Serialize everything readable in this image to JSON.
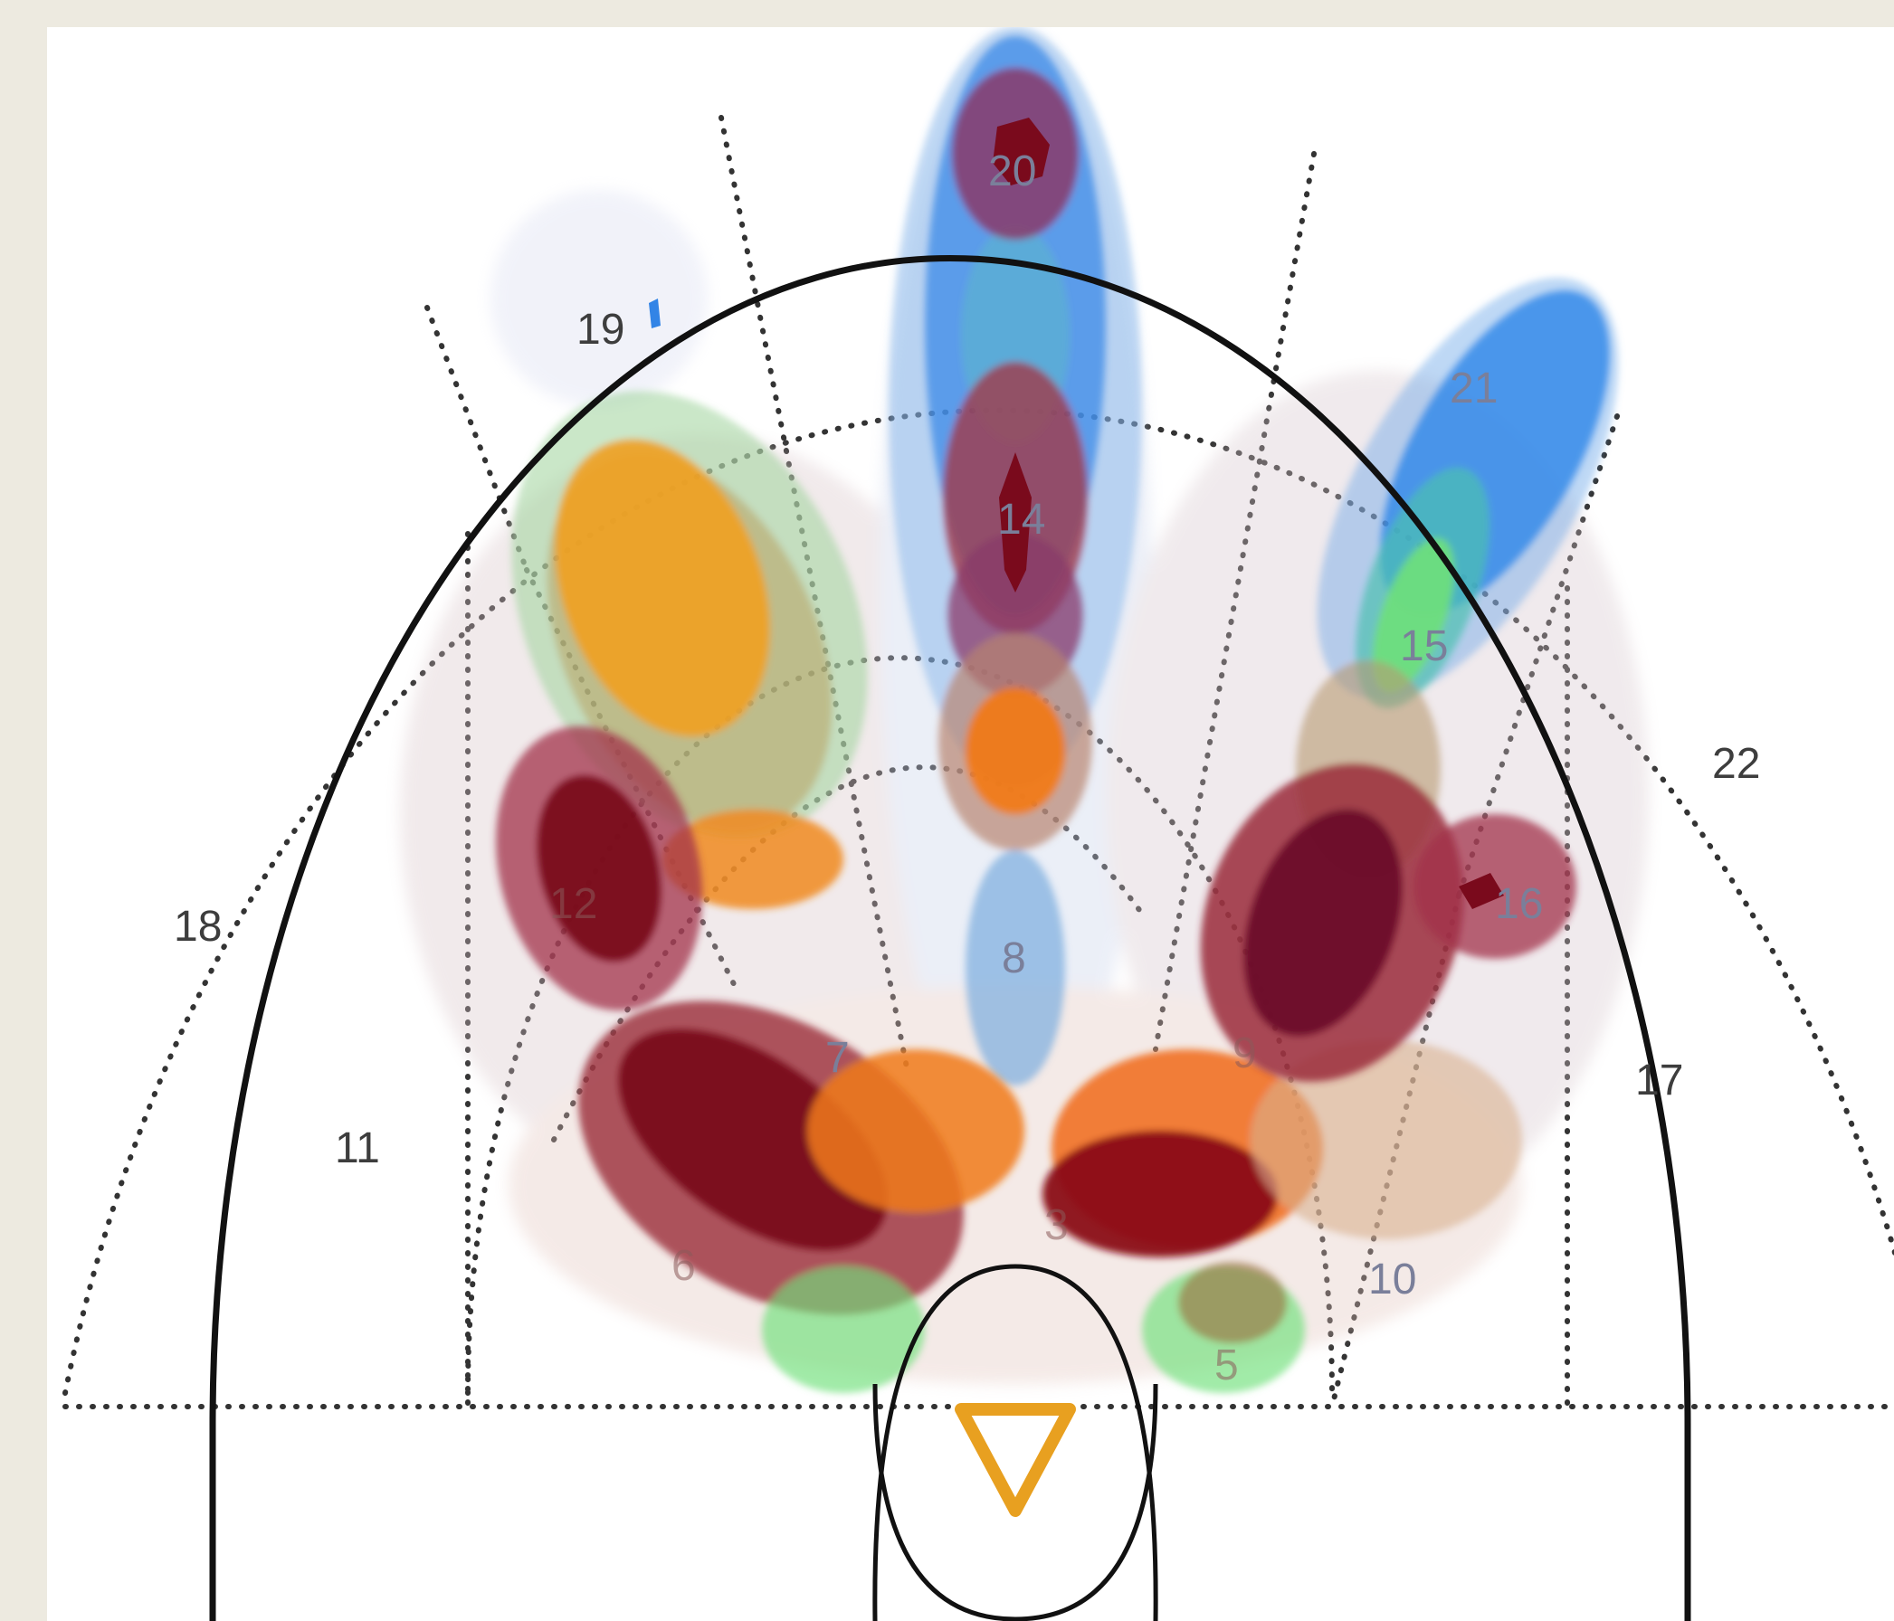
{
  "court": {
    "zones": [
      {
        "id": "3",
        "label": "3"
      },
      {
        "id": "5",
        "label": "5"
      },
      {
        "id": "6",
        "label": "6"
      },
      {
        "id": "7",
        "label": "7"
      },
      {
        "id": "8",
        "label": "8"
      },
      {
        "id": "9",
        "label": "9"
      },
      {
        "id": "10",
        "label": "10"
      },
      {
        "id": "11",
        "label": "11"
      },
      {
        "id": "12",
        "label": "12"
      },
      {
        "id": "14",
        "label": "14"
      },
      {
        "id": "15",
        "label": "15"
      },
      {
        "id": "16",
        "label": "16"
      },
      {
        "id": "17",
        "label": "17"
      },
      {
        "id": "18",
        "label": "18"
      },
      {
        "id": "19",
        "label": "19"
      },
      {
        "id": "20",
        "label": "20"
      },
      {
        "id": "21",
        "label": "21"
      },
      {
        "id": "22",
        "label": "22"
      }
    ],
    "basket_icon": "inverted-triangle-icon",
    "colors": {
      "court_line": "#111111",
      "zone_line": "#333333",
      "basket": "#e8a020",
      "heat_dark": "#7a0a1c",
      "heat_red": "#9a1c1c",
      "heat_orange": "#f07a1a",
      "heat_amber": "#f0a020",
      "heat_green": "#6fe07a",
      "heat_blue": "#2f86e8",
      "heat_purple": "#8a3a7a"
    }
  }
}
